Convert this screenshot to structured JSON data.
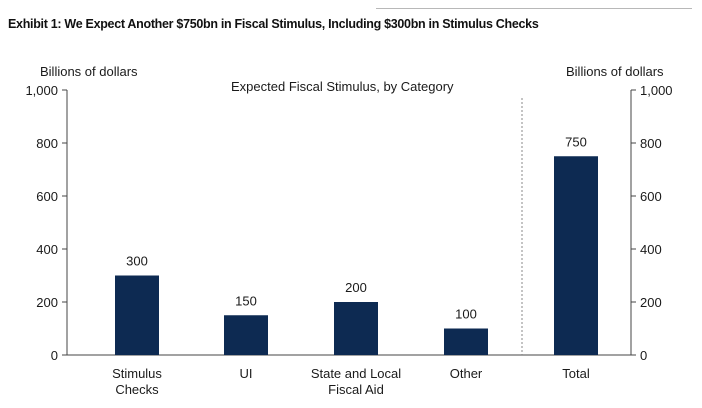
{
  "exhibit_title": "Exhibit 1: We Expect Another $750bn in Fiscal Stimulus, Including $300bn in Stimulus Checks",
  "chart_data": {
    "type": "bar",
    "title": "Expected Fiscal Stimulus, by Category",
    "ylabel_left": "Billions of dollars",
    "ylabel_right": "Billions of dollars",
    "ylim": [
      0,
      1000
    ],
    "yticks": [
      0,
      200,
      400,
      600,
      800,
      1000
    ],
    "ytick_labels": [
      "0",
      "200",
      "400",
      "600",
      "800",
      "1,000"
    ],
    "categories": [
      [
        "Stimulus",
        "Checks"
      ],
      [
        "UI"
      ],
      [
        "State and Local",
        "Fiscal Aid"
      ],
      [
        "Other"
      ],
      [
        "Total"
      ]
    ],
    "values": [
      300,
      150,
      200,
      100,
      750
    ],
    "value_labels": [
      "300",
      "150",
      "200",
      "100",
      "750"
    ],
    "separator_before_index": 4,
    "bar_color": "#0d2a52"
  }
}
